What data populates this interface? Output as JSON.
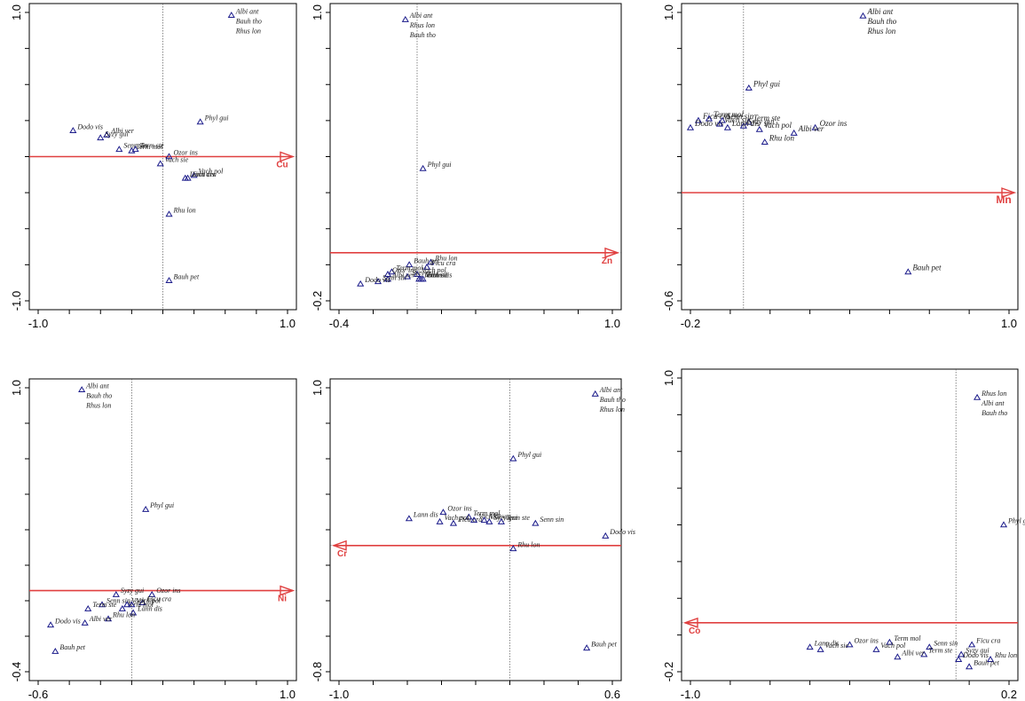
{
  "chart_data": [
    {
      "type": "scatter",
      "variable": "Cu",
      "arrow_direction": "right",
      "xlim": [
        -1.0,
        1.0
      ],
      "ylim": [
        -1.0,
        1.0
      ],
      "x_tick_labels": [
        "-1.0",
        "1.0"
      ],
      "y_tick_labels": [
        "-1.0",
        "1.0"
      ],
      "points": [
        {
          "label": "Albi ant",
          "x": 0.55,
          "y": 0.98
        },
        {
          "label": "Bauh tho",
          "x": 0.55,
          "y": 0.98
        },
        {
          "label": "Rhus lon",
          "x": 0.55,
          "y": 0.98
        },
        {
          "label": "Phyl gui",
          "x": 0.3,
          "y": 0.24
        },
        {
          "label": "Dodo vis",
          "x": -0.72,
          "y": 0.18
        },
        {
          "label": "Albi ver",
          "x": -0.45,
          "y": 0.15
        },
        {
          "label": "Syzy gui",
          "x": -0.5,
          "y": 0.13
        },
        {
          "label": "Senn sin",
          "x": -0.35,
          "y": 0.05
        },
        {
          "label": "Term ste",
          "x": -0.22,
          "y": 0.05
        },
        {
          "label": "Term mol",
          "x": -0.25,
          "y": 0.04
        },
        {
          "label": "Vach sie",
          "x": -0.02,
          "y": -0.05
        },
        {
          "label": "Ozor ins",
          "x": 0.05,
          "y": 0.0
        },
        {
          "label": "Vach pol",
          "x": 0.25,
          "y": -0.13
        },
        {
          "label": "Ficu cra",
          "x": 0.2,
          "y": -0.15
        },
        {
          "label": "Lann dis",
          "x": 0.18,
          "y": -0.15
        },
        {
          "label": "Rhu lon",
          "x": 0.05,
          "y": -0.4
        },
        {
          "label": "Bauh pet",
          "x": 0.05,
          "y": -0.86
        }
      ]
    },
    {
      "type": "scatter",
      "variable": "Zn",
      "arrow_direction": "right",
      "xlim": [
        -0.4,
        1.0
      ],
      "ylim": [
        -0.2,
        1.0
      ],
      "x_tick_labels": [
        "-0.4",
        "1.0"
      ],
      "y_tick_labels": [
        "-0.2",
        "1.0"
      ],
      "points": [
        {
          "label": "Albi ant",
          "x": -0.06,
          "y": 0.97
        },
        {
          "label": "Rhus lon",
          "x": -0.06,
          "y": 0.97
        },
        {
          "label": "Bauh tho",
          "x": -0.06,
          "y": 0.97
        },
        {
          "label": "Phyl gui",
          "x": 0.03,
          "y": 0.35
        },
        {
          "label": "Rhu lon",
          "x": 0.07,
          "y": -0.04
        },
        {
          "label": "Bauh pet",
          "x": -0.04,
          "y": -0.05
        },
        {
          "label": "Term mol",
          "x": -0.13,
          "y": -0.08
        },
        {
          "label": "Ficu cra",
          "x": 0.05,
          "y": -0.06
        },
        {
          "label": "Ozor ins",
          "x": -0.15,
          "y": -0.09
        },
        {
          "label": "Vach pol",
          "x": 0.0,
          "y": -0.09
        },
        {
          "label": "Syzy gui",
          "x": -0.05,
          "y": -0.1
        },
        {
          "label": "Senn sin",
          "x": -0.2,
          "y": -0.12
        },
        {
          "label": "Albi ver",
          "x": -0.15,
          "y": -0.11
        },
        {
          "label": "Term ste",
          "x": 0.01,
          "y": -0.11
        },
        {
          "label": "Vach sie",
          "x": 0.02,
          "y": -0.11
        },
        {
          "label": "Lann dis",
          "x": 0.03,
          "y": -0.11
        },
        {
          "label": "Dodo vis",
          "x": -0.29,
          "y": -0.13
        }
      ]
    },
    {
      "type": "scatter",
      "variable": "Mn",
      "arrow_direction": "right",
      "xlim": [
        -0.2,
        1.0
      ],
      "ylim": [
        -0.6,
        1.0
      ],
      "x_tick_labels": [
        "-0.2",
        "1.0"
      ],
      "y_tick_labels": [
        "-0.6",
        "1.0"
      ],
      "points": [
        {
          "label": "Albi ant",
          "x": 0.45,
          "y": 0.98
        },
        {
          "label": "Bauh tho",
          "x": 0.45,
          "y": 0.98
        },
        {
          "label": "Rhus lon",
          "x": 0.45,
          "y": 0.98
        },
        {
          "label": "Phyl gui",
          "x": 0.02,
          "y": 0.58
        },
        {
          "label": "Ficu cra",
          "x": -0.17,
          "y": 0.4
        },
        {
          "label": "Term mol",
          "x": -0.13,
          "y": 0.41
        },
        {
          "label": "Senn sin",
          "x": -0.08,
          "y": 0.4
        },
        {
          "label": "Term ste",
          "x": 0.02,
          "y": 0.39
        },
        {
          "label": "Dodo vis",
          "x": -0.2,
          "y": 0.36
        },
        {
          "label": "Vach sie",
          "x": -0.09,
          "y": 0.38
        },
        {
          "label": "Syzy gui",
          "x": 0.0,
          "y": 0.37
        },
        {
          "label": "Lann dis",
          "x": -0.06,
          "y": 0.36
        },
        {
          "label": "Vach pol",
          "x": 0.06,
          "y": 0.35
        },
        {
          "label": "Ozor ins",
          "x": 0.27,
          "y": 0.36
        },
        {
          "label": "Albi ver",
          "x": 0.19,
          "y": 0.33
        },
        {
          "label": "Rhu lon",
          "x": 0.08,
          "y": 0.28
        },
        {
          "label": "Bauh pet",
          "x": 0.62,
          "y": -0.44
        }
      ]
    },
    {
      "type": "scatter",
      "variable": "Ni",
      "arrow_direction": "right",
      "xlim": [
        -0.6,
        1.0
      ],
      "ylim": [
        -0.4,
        1.0
      ],
      "x_tick_labels": [
        "-0.6",
        "1.0"
      ],
      "y_tick_labels": [
        "-0.4",
        "1.0"
      ],
      "points": [
        {
          "label": "Albi ant",
          "x": -0.32,
          "y": 0.99
        },
        {
          "label": "Bauh tho",
          "x": -0.32,
          "y": 0.99
        },
        {
          "label": "Rhus lon",
          "x": -0.32,
          "y": 0.99
        },
        {
          "label": "Phyl gui",
          "x": 0.09,
          "y": 0.4
        },
        {
          "label": "Syzy gui",
          "x": -0.1,
          "y": -0.02
        },
        {
          "label": "Ozor ins",
          "x": 0.13,
          "y": -0.02
        },
        {
          "label": "Senn sin",
          "x": -0.19,
          "y": -0.07
        },
        {
          "label": "Ficu cra",
          "x": 0.07,
          "y": -0.06
        },
        {
          "label": "Term ste",
          "x": -0.28,
          "y": -0.09
        },
        {
          "label": "Term mol",
          "x": -0.06,
          "y": -0.09
        },
        {
          "label": "Vach sie",
          "x": -0.03,
          "y": -0.07
        },
        {
          "label": "Vach pol",
          "x": 0.0,
          "y": -0.07
        },
        {
          "label": "Lann dis",
          "x": 0.01,
          "y": -0.11
        },
        {
          "label": "Rhu lon",
          "x": -0.15,
          "y": -0.14
        },
        {
          "label": "Albi ver",
          "x": -0.3,
          "y": -0.16
        },
        {
          "label": "Dodo vis",
          "x": -0.52,
          "y": -0.17
        },
        {
          "label": "Bauh pet",
          "x": -0.49,
          "y": -0.3
        }
      ]
    },
    {
      "type": "scatter",
      "variable": "Cr",
      "arrow_direction": "left",
      "xlim": [
        -1.0,
        0.6
      ],
      "ylim": [
        -0.8,
        1.0
      ],
      "x_tick_labels": [
        "-1.0",
        "0.6"
      ],
      "y_tick_labels": [
        "-0.8",
        "1.0"
      ],
      "points": [
        {
          "label": "Albi ant",
          "x": 0.5,
          "y": 0.96
        },
        {
          "label": "Bauh tho",
          "x": 0.5,
          "y": 0.96
        },
        {
          "label": "Rhus lon",
          "x": 0.5,
          "y": 0.96
        },
        {
          "label": "Phyl gui",
          "x": 0.02,
          "y": 0.55
        },
        {
          "label": "Lann dis",
          "x": -0.59,
          "y": 0.17
        },
        {
          "label": "Ozor ins",
          "x": -0.39,
          "y": 0.21
        },
        {
          "label": "Term mol",
          "x": -0.24,
          "y": 0.18
        },
        {
          "label": "Syzy gui",
          "x": -0.12,
          "y": 0.15
        },
        {
          "label": "Vach pol",
          "x": -0.41,
          "y": 0.15
        },
        {
          "label": "Ficu cra",
          "x": -0.33,
          "y": 0.14
        },
        {
          "label": "Vach sie",
          "x": -0.21,
          "y": 0.16
        },
        {
          "label": "Albi ver",
          "x": -0.15,
          "y": 0.16
        },
        {
          "label": "Term ste",
          "x": -0.05,
          "y": 0.15
        },
        {
          "label": "Senn sin",
          "x": 0.15,
          "y": 0.14
        },
        {
          "label": "Dodo vis",
          "x": 0.56,
          "y": 0.06
        },
        {
          "label": "Rhu lon",
          "x": 0.02,
          "y": -0.02
        },
        {
          "label": "Bauh pet",
          "x": 0.45,
          "y": -0.65
        }
      ]
    },
    {
      "type": "scatter",
      "variable": "Co",
      "arrow_direction": "left",
      "xlim": [
        -1.0,
        0.2
      ],
      "ylim": [
        -0.2,
        1.0
      ],
      "x_tick_labels": [
        "-1.0",
        "0.2"
      ],
      "y_tick_labels": [
        "-0.2",
        "1.0"
      ],
      "points": [
        {
          "label": "Rhus lon",
          "x": 0.08,
          "y": 0.92
        },
        {
          "label": "Albi ant",
          "x": 0.08,
          "y": 0.92
        },
        {
          "label": "Bauh tho",
          "x": 0.08,
          "y": 0.92
        },
        {
          "label": "Phyl gui",
          "x": 0.18,
          "y": 0.4
        },
        {
          "label": "Term mol",
          "x": -0.25,
          "y": -0.08
        },
        {
          "label": "Ozor ins",
          "x": -0.4,
          "y": -0.09
        },
        {
          "label": "Senn sin",
          "x": -0.1,
          "y": -0.1
        },
        {
          "label": "Ficu cra",
          "x": 0.06,
          "y": -0.09
        },
        {
          "label": "Lann dis",
          "x": -0.55,
          "y": -0.1
        },
        {
          "label": "Vach sie",
          "x": -0.51,
          "y": -0.11
        },
        {
          "label": "Vach pol",
          "x": -0.3,
          "y": -0.11
        },
        {
          "label": "Term ste",
          "x": -0.12,
          "y": -0.13
        },
        {
          "label": "Syzy gui",
          "x": 0.02,
          "y": -0.13
        },
        {
          "label": "Albi ver",
          "x": -0.22,
          "y": -0.14
        },
        {
          "label": "Dodo vis",
          "x": 0.01,
          "y": -0.15
        },
        {
          "label": "Rhu lon",
          "x": 0.13,
          "y": -0.15
        },
        {
          "label": "Bauh pet",
          "x": 0.05,
          "y": -0.18
        }
      ]
    }
  ]
}
